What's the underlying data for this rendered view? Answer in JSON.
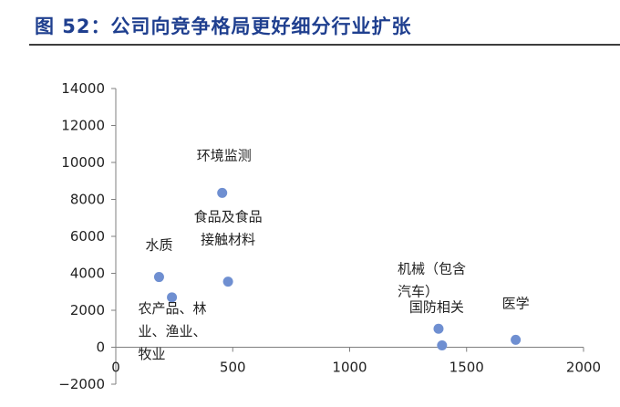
{
  "title": "图 52：公司向竞争格局更好细分行业扩张",
  "colors": {
    "title": "#1f3f8f",
    "point": "#6f8fd1",
    "axis": "#7f7f7f",
    "text": "#222222"
  },
  "chart_data": {
    "type": "scatter",
    "title": "",
    "xlabel": "",
    "ylabel": "",
    "xlim": [
      0,
      2000
    ],
    "ylim": [
      -2000,
      14000
    ],
    "xticks": [
      "0",
      "500",
      "1000",
      "1500",
      "2000"
    ],
    "yticks": [
      "14000",
      "12000",
      "10000",
      "8000",
      "6000",
      "4000",
      "2000",
      "0",
      "−2000"
    ],
    "grid": false,
    "legend": "none",
    "points": [
      {
        "label": "环境监测",
        "label_lines": [
          "环境监测"
        ],
        "x": 455,
        "y": 8350
      },
      {
        "label": "食品及食品接触材料",
        "label_lines": [
          "食品及食品",
          "接触材料"
        ],
        "x": 480,
        "y": 3550
      },
      {
        "label": "水质",
        "label_lines": [
          "水质"
        ],
        "x": 185,
        "y": 3800
      },
      {
        "label": "农产品、林业、渔业、牧业",
        "label_lines": [
          "农产品、林",
          "业、渔业、",
          "牧业"
        ],
        "x": 240,
        "y": 2700
      },
      {
        "label": "机械（包含汽车）",
        "label_lines": [
          "机械（包含",
          "汽车）"
        ],
        "x": 1380,
        "y": 1000
      },
      {
        "label": "国防相关",
        "label_lines": [
          "国防相关"
        ],
        "x": 1395,
        "y": 100
      },
      {
        "label": "医学",
        "label_lines": [
          "医学"
        ],
        "x": 1710,
        "y": 400
      }
    ]
  }
}
